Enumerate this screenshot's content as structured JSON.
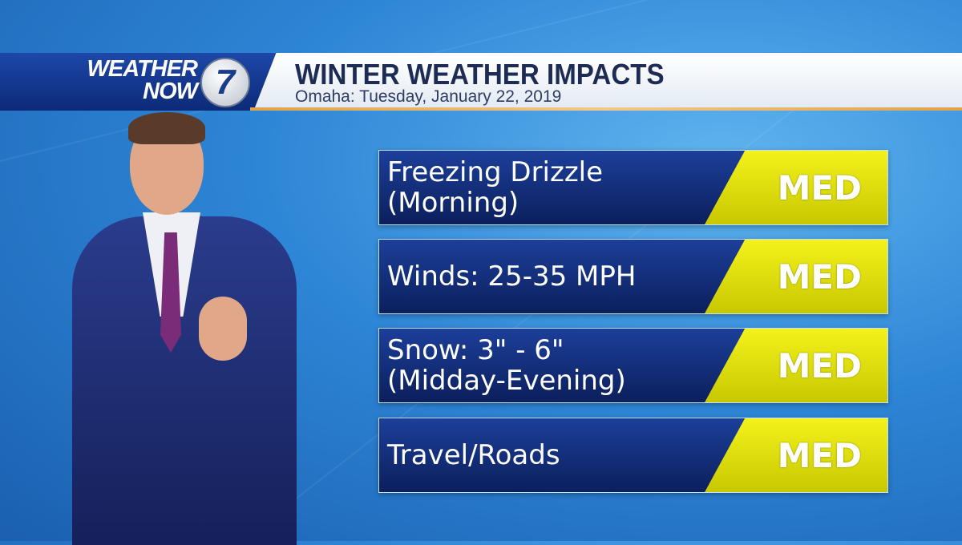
{
  "header": {
    "logo": {
      "line1": "WEATHER",
      "line2": "NOW",
      "channel": "7"
    },
    "title": "WINTER WEATHER IMPACTS",
    "subtitle": "Omaha: Tuesday, January 22, 2019"
  },
  "impacts": [
    {
      "label": "Freezing Drizzle\n(Morning)",
      "level": "MED"
    },
    {
      "label": "Winds: 25-35 MPH",
      "level": "MED"
    },
    {
      "label": "Snow: 3\" - 6\"\n(Midday-Evening)",
      "level": "MED"
    },
    {
      "label": "Travel/Roads",
      "level": "MED"
    }
  ],
  "colors": {
    "row_bg": "#12307a",
    "level_bg": "#e6e612",
    "accent": "#e0a24a",
    "header_text": "#1c2c55"
  }
}
